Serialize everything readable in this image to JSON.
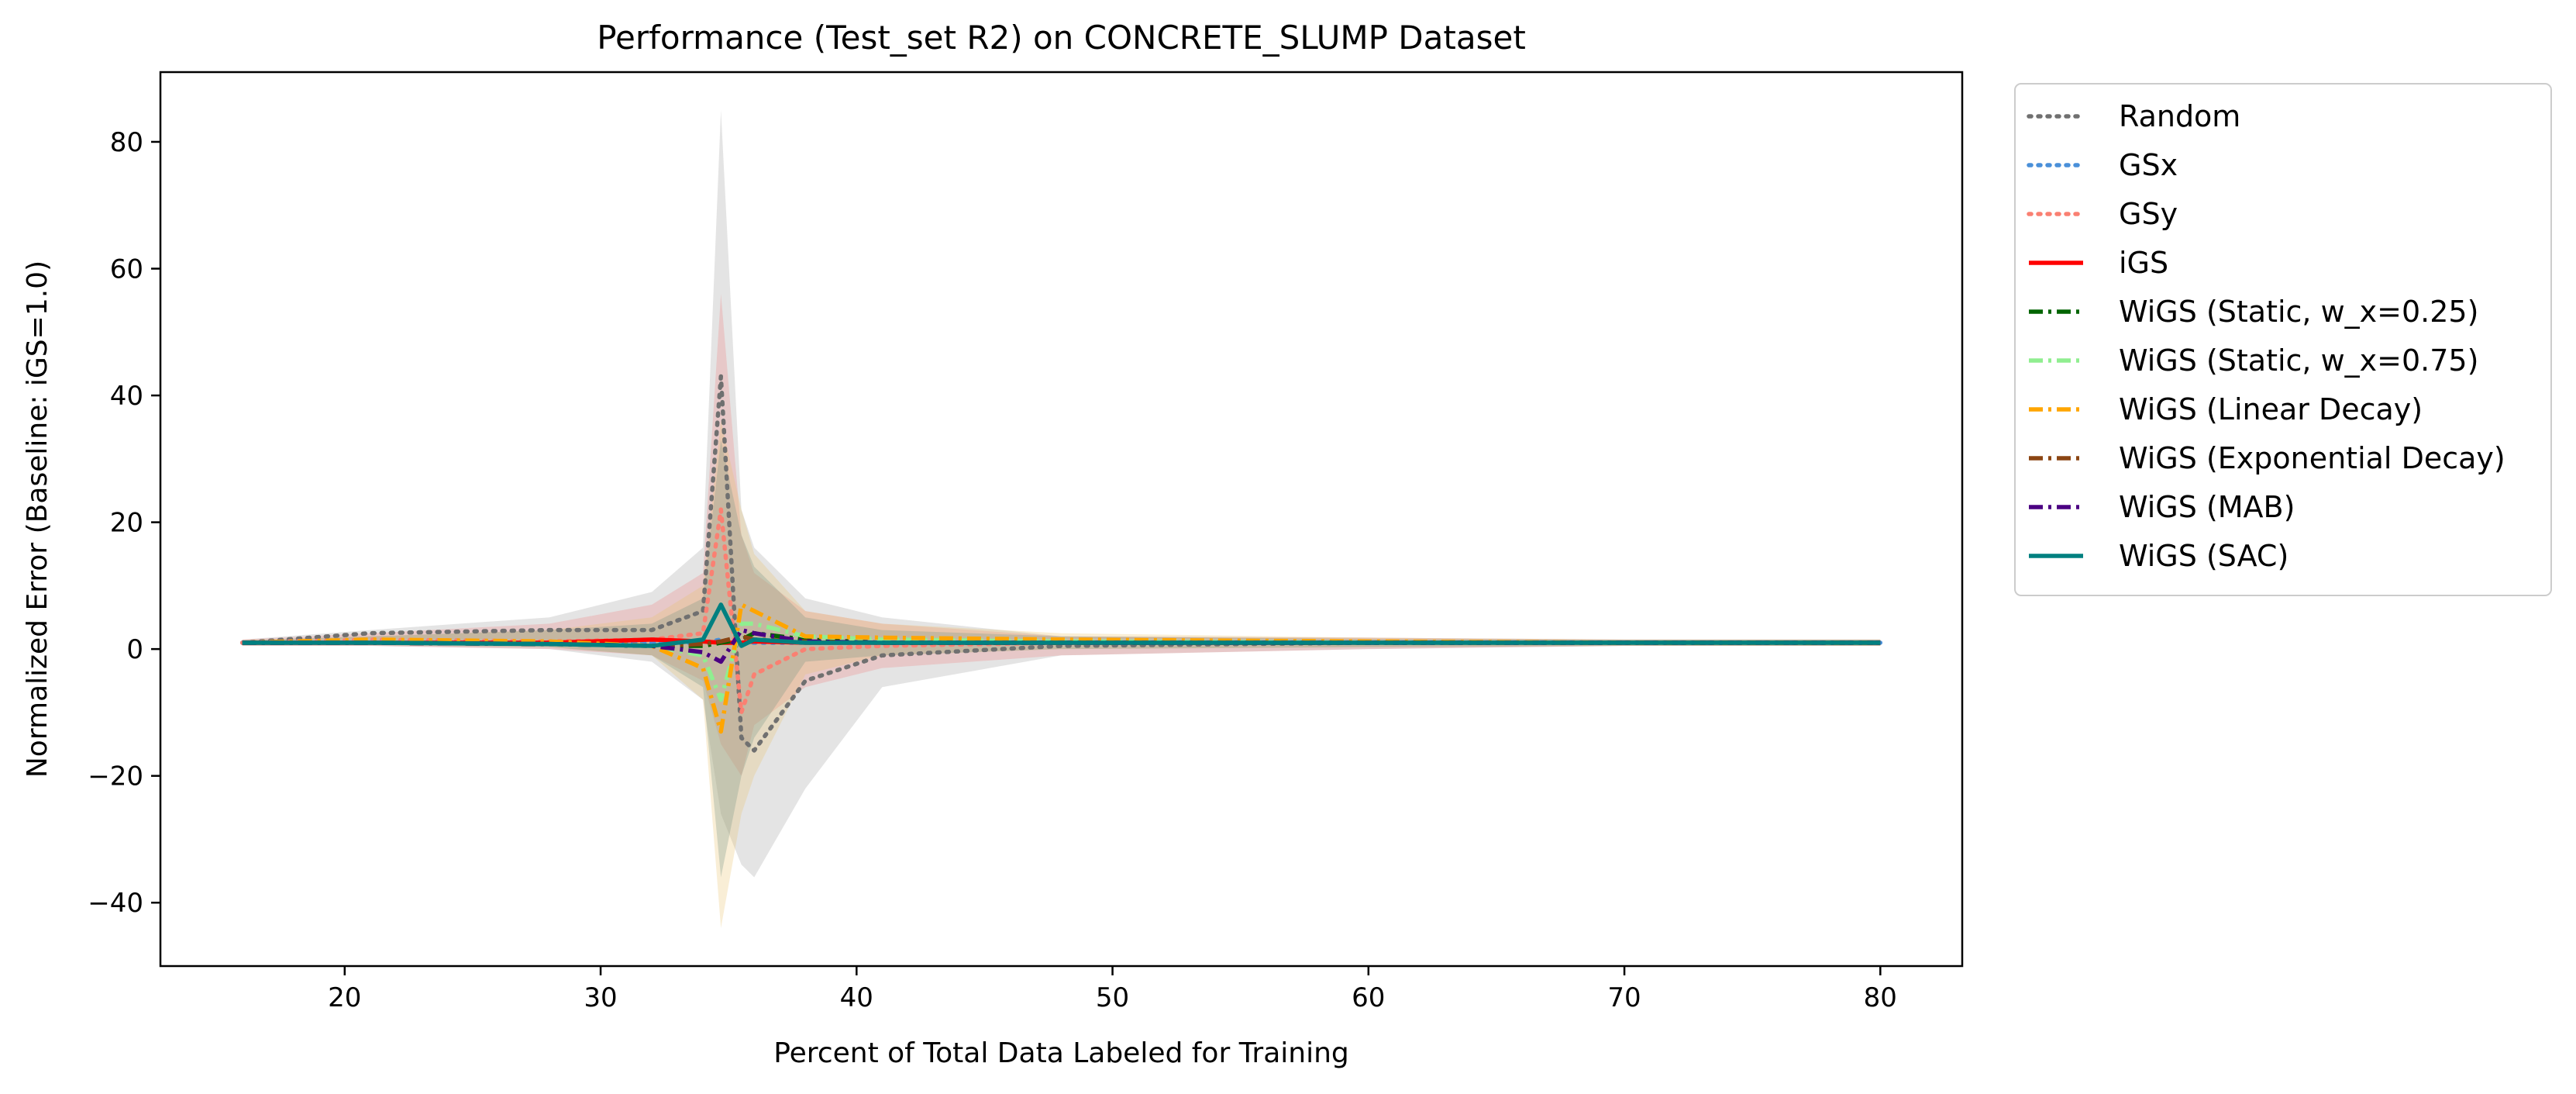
{
  "chart_data": {
    "type": "line",
    "title": "Performance (Test_set R2) on CONCRETE_SLUMP Dataset",
    "xlabel": "Percent of Total Data Labeled for Training",
    "ylabel": "Normalized Error (Baseline: iGS=1.0)",
    "xlim": [
      12.8,
      83.2
    ],
    "ylim": [
      -50,
      91
    ],
    "xticks": [
      20,
      30,
      40,
      50,
      60,
      70,
      80
    ],
    "yticks": [
      -40,
      -20,
      0,
      20,
      40,
      60,
      80
    ],
    "ytick_labels": [
      "−40",
      "−20",
      "0",
      "20",
      "40",
      "60",
      "80"
    ],
    "grid": false,
    "legend_position": "outside-right-top",
    "x": [
      16,
      21,
      28,
      32,
      34,
      34.7,
      35.5,
      36,
      38,
      41,
      48,
      60,
      70,
      80
    ],
    "bands": [
      {
        "series": "Random",
        "color": "#9e9e9e",
        "lower": [
          0.5,
          0.5,
          0,
          -2,
          -8,
          -26,
          -34,
          -36,
          -22,
          -6,
          -1,
          0,
          0.5,
          0.5
        ],
        "upper": [
          1.5,
          3,
          5,
          9,
          16,
          85,
          22,
          16,
          8,
          5,
          2,
          1.8,
          1.5,
          1.5
        ]
      },
      {
        "series": "GSy",
        "color": "#f08080",
        "lower": [
          0.5,
          0.5,
          0,
          -1,
          -5,
          -15,
          -20,
          -12,
          -6,
          -3,
          -1,
          0,
          0.5,
          0.5
        ],
        "upper": [
          1.5,
          2.5,
          4,
          7,
          12,
          56,
          18,
          12,
          6,
          4,
          2,
          1.8,
          1.5,
          1.5
        ]
      },
      {
        "series": "WiGS (Linear Decay)",
        "color": "#e8c36a",
        "lower": [
          0.6,
          0.6,
          0.3,
          -1,
          -8,
          -44,
          -26,
          -20,
          -4,
          -1,
          0,
          0.3,
          0.5,
          0.5
        ],
        "upper": [
          1.4,
          2,
          3,
          5,
          10,
          36,
          22,
          15,
          6,
          4,
          2.5,
          1.8,
          1.5,
          1.5
        ]
      },
      {
        "series": "WiGS (SAC)",
        "color": "#708f80",
        "lower": [
          0.6,
          0.6,
          0.3,
          -1,
          -6,
          -36,
          -20,
          -14,
          -2,
          -1,
          0,
          0.3,
          0.5,
          0.5
        ],
        "upper": [
          1.4,
          2,
          3,
          4,
          8,
          33,
          18,
          13,
          5,
          3,
          2,
          1.6,
          1.5,
          1.5
        ]
      }
    ],
    "series": [
      {
        "name": "Random",
        "color": "#707070",
        "style": "dotted",
        "values": [
          1,
          2.5,
          3,
          3,
          6,
          43,
          -14,
          -16,
          -5,
          -1,
          0.5,
          1,
          1,
          1
        ]
      },
      {
        "name": "GSx",
        "color": "#4a90d9",
        "style": "dotted",
        "values": [
          1,
          1.2,
          1,
          1,
          1,
          1.5,
          1,
          1,
          1,
          1,
          1,
          1,
          1,
          1
        ]
      },
      {
        "name": "GSy",
        "color": "#fa8072",
        "style": "dotted",
        "values": [
          1,
          1.5,
          1.2,
          1.5,
          2.5,
          22,
          -10,
          -4,
          0,
          0.5,
          1,
          1,
          1,
          1
        ]
      },
      {
        "name": "iGS",
        "color": "#ff0000",
        "style": "solid",
        "values": [
          1,
          1,
          1,
          1.5,
          1.2,
          1,
          1,
          1.2,
          1,
          1,
          1,
          1,
          1,
          1
        ]
      },
      {
        "name": "WiGS (Static, w_x=0.25)",
        "color": "#006400",
        "style": "dashdot",
        "values": [
          1,
          1,
          0.8,
          0.5,
          0.5,
          1,
          1.5,
          2.5,
          1.5,
          1,
          1,
          1,
          1,
          1
        ]
      },
      {
        "name": "WiGS (Static, w_x=0.75)",
        "color": "#90ee90",
        "style": "dashdot",
        "values": [
          1,
          1.3,
          1,
          0.5,
          -1,
          -8,
          4,
          4,
          2,
          1.5,
          1.2,
          1,
          1,
          1
        ]
      },
      {
        "name": "WiGS (Linear Decay)",
        "color": "#ffa500",
        "style": "dashdot",
        "values": [
          1,
          1.5,
          1.2,
          0.5,
          -3,
          -13,
          7,
          6,
          2,
          1.8,
          1.5,
          1.2,
          1,
          1
        ]
      },
      {
        "name": "WiGS (Exponential Decay)",
        "color": "#8b4513",
        "style": "dashdot",
        "values": [
          1,
          1,
          0.8,
          0.5,
          0.8,
          1.2,
          2,
          1.5,
          1.2,
          1,
          1,
          1,
          1,
          1
        ]
      },
      {
        "name": "WiGS (MAB)",
        "color": "#4b0082",
        "style": "dashdot",
        "values": [
          1,
          1,
          0.8,
          0.5,
          -0.5,
          -2,
          3,
          2.5,
          1.2,
          1,
          1,
          1,
          1,
          1
        ]
      },
      {
        "name": "WiGS (SAC)",
        "color": "#008080",
        "style": "solid",
        "values": [
          1,
          1,
          0.8,
          0.5,
          1.5,
          7,
          0.5,
          1.5,
          1,
          1,
          1,
          1,
          1,
          1
        ]
      }
    ]
  }
}
